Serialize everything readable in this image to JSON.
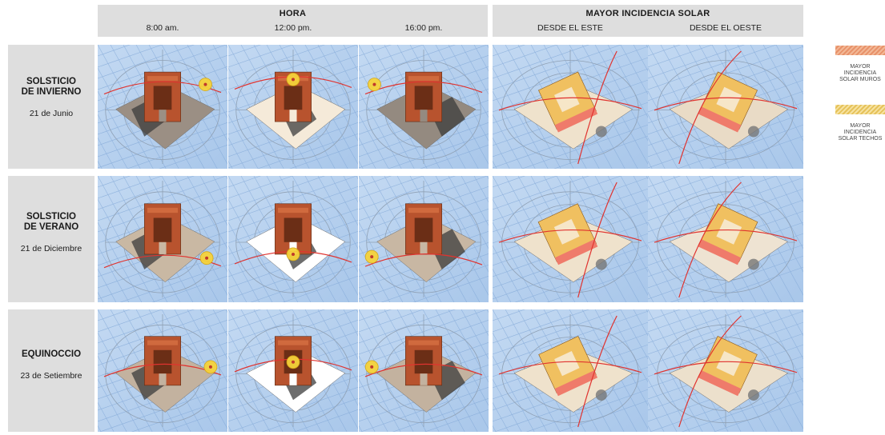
{
  "header": {
    "hora_title": "HORA",
    "mayor_title": "MAYOR INCIDENCIA SOLAR",
    "columns": [
      "8:00 am.",
      "12:00 pm.",
      "16:00 pm.",
      "DESDE EL ESTE",
      "DESDE EL OESTE"
    ]
  },
  "rows": [
    {
      "title": "SOLSTICIO DE INVIERNO",
      "date": "21 de Junio"
    },
    {
      "title": "SOLSTICIO DE VERANO",
      "date": "21 de Diciembre"
    },
    {
      "title": "EQUINOCCIO",
      "date": "23 de Setiembre"
    }
  ],
  "legend": [
    {
      "label": "MAYOR INCIDENCIA SOLAR MUROS",
      "color": "#f2b896"
    },
    {
      "label": "MAYOR INCIDENCIA SOLAR TECHOS",
      "color": "#f3d67a"
    }
  ],
  "colors": {
    "sky": "#a9c7ea",
    "brick": "#b8532e",
    "shadow": "#3c3c3c",
    "sun": "#f6d33a",
    "sunpath": "#e0332f"
  }
}
